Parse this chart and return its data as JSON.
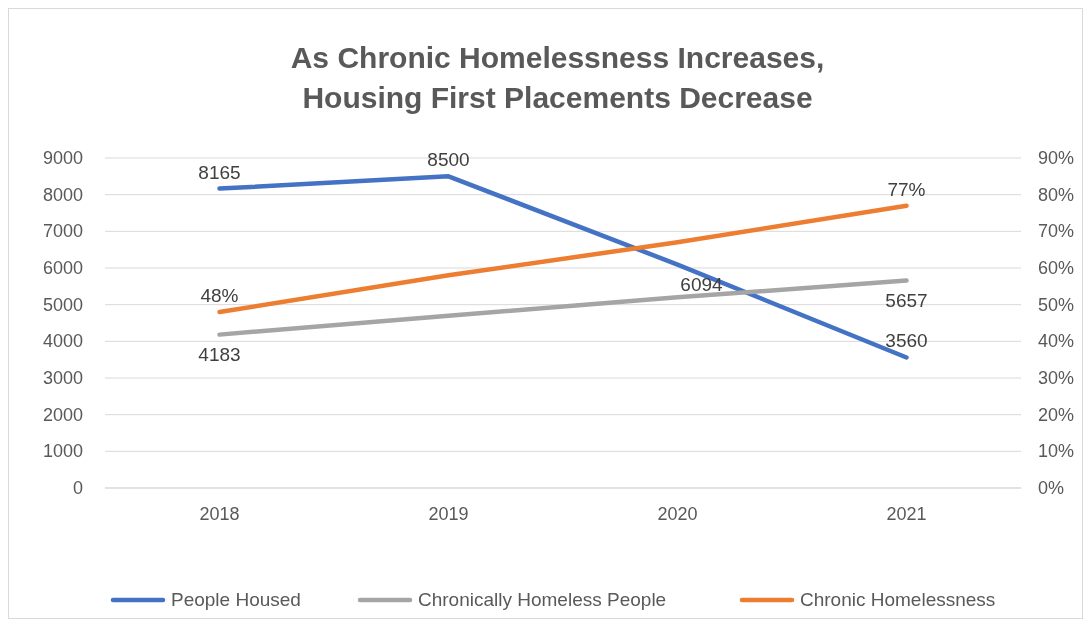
{
  "chart_data": {
    "type": "line",
    "title": "As Chronic Homelessness Increases,\nHousing First Placements Decrease",
    "categories": [
      "2018",
      "2019",
      "2020",
      "2021"
    ],
    "series": [
      {
        "name": "People Housed",
        "color": "#4472c4",
        "values": [
          8165,
          8500,
          6094,
          3560
        ],
        "value_labels": [
          "8165",
          "8500",
          "6094",
          "3560"
        ]
      },
      {
        "name": "Chronically Homeless People",
        "color": "#a5a5a5",
        "values": [
          4183,
          4700,
          5200,
          5657
        ],
        "value_labels": [
          "4183",
          null,
          null,
          "5657"
        ]
      },
      {
        "name": "Chronic Homelessness",
        "color": "#ed7d31",
        "axis": "y2",
        "values": [
          48,
          58,
          67,
          77
        ],
        "value_labels": [
          "48%",
          null,
          null,
          "77%"
        ]
      }
    ],
    "ylim": [
      0,
      9000
    ],
    "yticks": [
      0,
      1000,
      2000,
      3000,
      4000,
      5000,
      6000,
      7000,
      8000,
      9000
    ],
    "y2lim": [
      0,
      90
    ],
    "y2ticks": [
      {
        "value": 0,
        "label": "0%"
      },
      {
        "value": 10,
        "label": "10%"
      },
      {
        "value": 20,
        "label": "20%"
      },
      {
        "value": 30,
        "label": "30%"
      },
      {
        "value": 40,
        "label": "40%"
      },
      {
        "value": 50,
        "label": "50%"
      },
      {
        "value": 60,
        "label": "60%"
      },
      {
        "value": 70,
        "label": "70%"
      },
      {
        "value": 80,
        "label": "80%"
      },
      {
        "value": 90,
        "label": "90%"
      }
    ],
    "grid": "y",
    "legend": "bottom",
    "marker": "none",
    "line_style": "solid"
  }
}
